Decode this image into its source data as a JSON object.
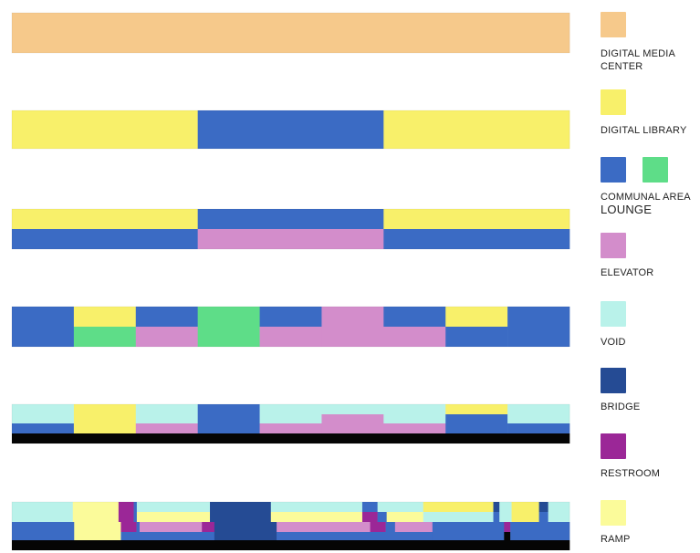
{
  "colors": {
    "digital_media_center": "#f6c98b",
    "digital_library": "#f8f06a",
    "communal_area": "#3b6bc4",
    "lounge": "#5edd88",
    "elevator": "#d38dcb",
    "void": "#b9f2ea",
    "bridge": "#254b94",
    "restroom": "#9b2797",
    "ramp": "#fbfb9a",
    "black": "#050505"
  },
  "legend": [
    {
      "key": "digital_media_center",
      "label": "DIGITAL MEDIA CENTER"
    },
    {
      "key": "digital_library",
      "label": "DIGITAL LIBRARY"
    },
    {
      "key": "communal_area",
      "label": "COMMUNAL AREA",
      "second_key": "lounge",
      "sublabel": "LOUNGE"
    },
    {
      "key": "elevator",
      "label": "ELEVATOR"
    },
    {
      "key": "void",
      "label": "VOID"
    },
    {
      "key": "bridge",
      "label": "BRIDGE"
    },
    {
      "key": "restroom",
      "label": "RESTROOM"
    },
    {
      "key": "ramp",
      "label": "RAMP"
    }
  ],
  "stages": [
    {
      "rows": [
        [
          [
            "digital_media_center",
            1
          ]
        ]
      ]
    },
    {
      "rows": [
        [
          [
            "digital_library",
            1
          ],
          [
            "communal_area",
            1
          ],
          [
            "digital_library",
            1
          ]
        ]
      ]
    },
    {
      "rows": [
        [
          [
            "digital_library",
            1
          ],
          [
            "communal_area",
            1
          ],
          [
            "digital_library",
            1
          ]
        ],
        [
          [
            "communal_area",
            1
          ],
          [
            "elevator",
            1
          ],
          [
            "communal_area",
            1
          ]
        ]
      ]
    },
    {
      "rows": [
        [
          [
            "communal_area",
            1
          ],
          [
            "digital_library",
            1
          ],
          [
            "communal_area",
            1
          ],
          [
            "lounge",
            1
          ],
          [
            "communal_area",
            1
          ],
          [
            "elevator",
            1
          ],
          [
            "communal_area",
            1
          ],
          [
            "digital_library",
            1
          ],
          [
            "communal_area",
            1
          ]
        ],
        [
          [
            "communal_area",
            1
          ],
          [
            "lounge",
            1
          ],
          [
            "elevator",
            1
          ],
          [
            "lounge",
            1
          ],
          [
            "elevator",
            1
          ],
          [
            "elevator",
            1
          ],
          [
            "elevator",
            1
          ],
          [
            "communal_area",
            1
          ],
          [
            "communal_area",
            1
          ]
        ]
      ]
    },
    {
      "rows": [
        [
          [
            "void",
            1
          ],
          [
            "digital_library",
            1
          ],
          [
            "void",
            1
          ],
          [
            "communal_area",
            1
          ],
          [
            "void",
            1
          ],
          [
            "void",
            1
          ],
          [
            "void",
            1
          ],
          [
            "digital_library",
            1
          ],
          [
            "void",
            1
          ]
        ],
        [
          [
            "void",
            1
          ],
          [
            "digital_library",
            1
          ],
          [
            "void",
            1
          ],
          [
            "communal_area",
            1
          ],
          [
            "void",
            1
          ],
          [
            "elevator",
            1
          ],
          [
            "void",
            1
          ],
          [
            "communal_area",
            1
          ],
          [
            "void",
            1
          ]
        ],
        [
          [
            "communal_area",
            1
          ],
          [
            "digital_library",
            1
          ],
          [
            "elevator",
            1
          ],
          [
            "communal_area",
            1
          ],
          [
            "elevator",
            1
          ],
          [
            "elevator",
            1
          ],
          [
            "elevator",
            1
          ],
          [
            "communal_area",
            1
          ],
          [
            "communal_area",
            1
          ]
        ],
        [
          [
            "black",
            1
          ]
        ]
      ]
    },
    {
      "rows": [
        [
          [
            "void",
            2
          ],
          [
            "ramp",
            1.5
          ],
          [
            "restroom",
            0.5
          ],
          [
            "communal_area",
            0.1
          ],
          [
            "void",
            2.4
          ],
          [
            "bridge",
            2
          ],
          [
            "void",
            3
          ],
          [
            "communal_area",
            0.5
          ],
          [
            "void",
            1.5
          ],
          [
            "digital_library",
            2.3
          ],
          [
            "bridge",
            0.2
          ],
          [
            "void",
            0.4
          ],
          [
            "digital_library",
            0.9
          ],
          [
            "bridge",
            0.3
          ],
          [
            "void",
            0.7
          ]
        ],
        [
          [
            "void",
            2
          ],
          [
            "ramp",
            1.5
          ],
          [
            "restroom",
            0.5
          ],
          [
            "communal_area",
            0.1
          ],
          [
            "ramp",
            2.4
          ],
          [
            "bridge",
            2
          ],
          [
            "ramp",
            3
          ],
          [
            "restroom",
            0.5
          ],
          [
            "communal_area",
            0.3
          ],
          [
            "ramp",
            1.2
          ],
          [
            "void",
            2.3
          ],
          [
            "communal_area",
            0.2
          ],
          [
            "void",
            0.4
          ],
          [
            "digital_library",
            0.9
          ],
          [
            "communal_area",
            0.3
          ],
          [
            "void",
            0.7
          ]
        ],
        [
          [
            "communal_area",
            2
          ],
          [
            "ramp",
            1.5
          ],
          [
            "restroom",
            0.5
          ],
          [
            "communal_area",
            0.1
          ],
          [
            "elevator",
            2
          ],
          [
            "restroom",
            0.4
          ],
          [
            "bridge",
            2
          ],
          [
            "elevator",
            3
          ],
          [
            "restroom",
            0.5
          ],
          [
            "communal_area",
            0.3
          ],
          [
            "elevator",
            1.2
          ],
          [
            "communal_area",
            2.3
          ],
          [
            "restroom",
            0.2
          ],
          [
            "communal_area",
            1.9
          ]
        ],
        [
          [
            "communal_area",
            2
          ],
          [
            "ramp",
            1.5
          ],
          [
            "communal_area",
            0.6
          ],
          [
            "communal_area",
            2.4
          ],
          [
            "bridge",
            2
          ],
          [
            "communal_area",
            5
          ],
          [
            "communal_area",
            2.3
          ],
          [
            "black",
            0.2
          ],
          [
            "communal_area",
            1.9
          ]
        ],
        [
          [
            "black",
            1
          ]
        ]
      ]
    }
  ]
}
